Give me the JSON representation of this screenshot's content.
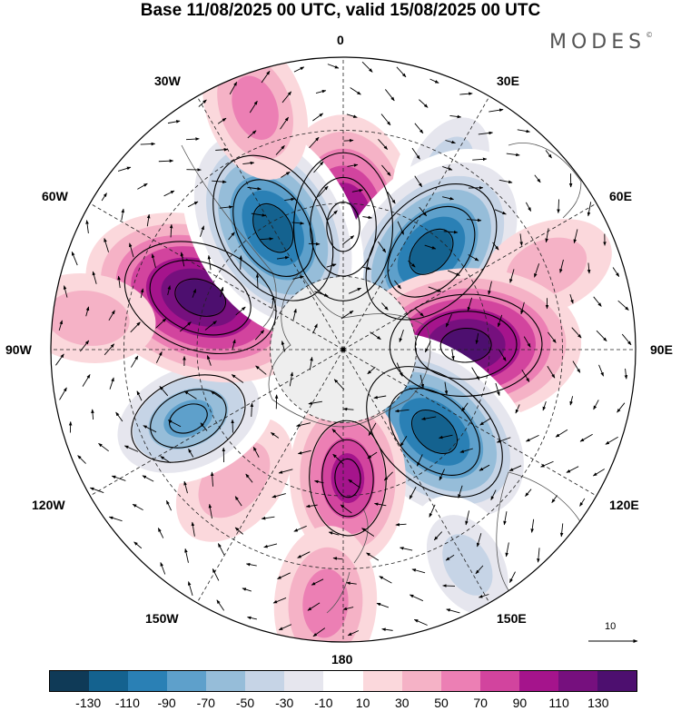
{
  "title": "Base 11/08/2025 00 UTC, valid 15/08/2025 00 UTC",
  "brand": "MODES",
  "brand_mark": "©",
  "longitude_labels": [
    "0",
    "30E",
    "60E",
    "90E",
    "120E",
    "150E",
    "180",
    "150W",
    "120W",
    "90W",
    "60W",
    "30W"
  ],
  "reference_vector": {
    "value": "10",
    "unit_label": "10"
  },
  "colorbar": {
    "tick_labels": [
      "-130",
      "-110",
      "-90",
      "-70",
      "-50",
      "-30",
      "-10",
      "10",
      "30",
      "50",
      "70",
      "90",
      "110",
      "130"
    ],
    "colors": [
      "#0f3a57",
      "#14628f",
      "#2a80b5",
      "#5ea0cb",
      "#96bdd9",
      "#c6d4e6",
      "#e6e6ee",
      "#ffffff",
      "#fbd8dc",
      "#f5b2c6",
      "#ec7fb4",
      "#d2449e",
      "#a5148c",
      "#76107e",
      "#4d0f6f"
    ]
  },
  "field_anomaly_centers": [
    {
      "lon_deg": 0,
      "colat_rel": 0.42,
      "value": 110
    },
    {
      "lon_deg": 30,
      "colat_rel": 0.72,
      "value": -40
    },
    {
      "lon_deg": 42,
      "colat_rel": 0.45,
      "value": -130
    },
    {
      "lon_deg": 68,
      "colat_rel": 0.75,
      "value": 20
    },
    {
      "lon_deg": 88,
      "colat_rel": 0.42,
      "value": 120
    },
    {
      "lon_deg": 132,
      "colat_rel": 0.42,
      "value": -130
    },
    {
      "lon_deg": 150,
      "colat_rel": 0.85,
      "value": -40
    },
    {
      "lon_deg": 178,
      "colat_rel": 0.44,
      "value": 80
    },
    {
      "lon_deg": -176,
      "colat_rel": 0.87,
      "value": 50
    },
    {
      "lon_deg": -140,
      "colat_rel": 0.58,
      "value": 30
    },
    {
      "lon_deg": -114,
      "colat_rel": 0.58,
      "value": -90
    },
    {
      "lon_deg": -70,
      "colat_rel": 0.52,
      "value": 130
    },
    {
      "lon_deg": -83,
      "colat_rel": 0.88,
      "value": 20
    },
    {
      "lon_deg": -30,
      "colat_rel": 0.48,
      "value": -130
    },
    {
      "lon_deg": -20,
      "colat_rel": 0.88,
      "value": 40
    }
  ]
}
